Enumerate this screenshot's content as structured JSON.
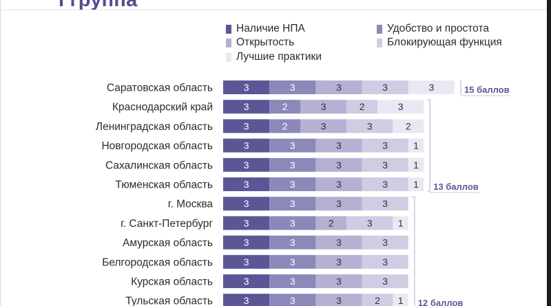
{
  "header": {
    "title": "I группа"
  },
  "colors": {
    "npa": "#5b5796",
    "convenience": "#8c88ba",
    "openness": "#b4b1d3",
    "blocking": "#cfcde4",
    "practices": "#e9e8f3",
    "group_label": "#5b5796",
    "bracket": "#c9c7df"
  },
  "chart_data": {
    "type": "bar",
    "stacked": true,
    "orientation": "horizontal",
    "title": "I группа",
    "legend_position": "top",
    "categories": [
      "Саратовская область",
      "Краснодарский край",
      "Ленинградская область",
      "Новгородская область",
      "Сахалинская область",
      "Тюменская область",
      "г. Москва",
      "г. Санкт-Петербург",
      "Амурская область",
      "Белгородская область",
      "Курская область",
      "Тульская область"
    ],
    "series": [
      {
        "name": "Наличие НПА",
        "values": [
          3,
          3,
          3,
          3,
          3,
          3,
          3,
          3,
          3,
          3,
          3,
          3
        ]
      },
      {
        "name": "Удобство и простота",
        "values": [
          3,
          2,
          2,
          3,
          3,
          3,
          3,
          3,
          3,
          3,
          3,
          3
        ]
      },
      {
        "name": "Открытость",
        "values": [
          3,
          3,
          3,
          3,
          3,
          3,
          3,
          2,
          3,
          3,
          3,
          3
        ]
      },
      {
        "name": "Блокирующая функция",
        "values": [
          3,
          2,
          3,
          3,
          3,
          3,
          3,
          3,
          3,
          3,
          3,
          2
        ]
      },
      {
        "name": "Лучшие практики",
        "values": [
          3,
          3,
          2,
          1,
          1,
          1,
          0,
          1,
          0,
          0,
          0,
          1
        ]
      }
    ],
    "group_labels": [
      {
        "label": "15 баллов",
        "from": 0,
        "to": 0
      },
      {
        "label": "13 баллов",
        "from": 1,
        "to": 5
      },
      {
        "label": "12 баллов",
        "from": 6,
        "to": 11
      }
    ]
  }
}
